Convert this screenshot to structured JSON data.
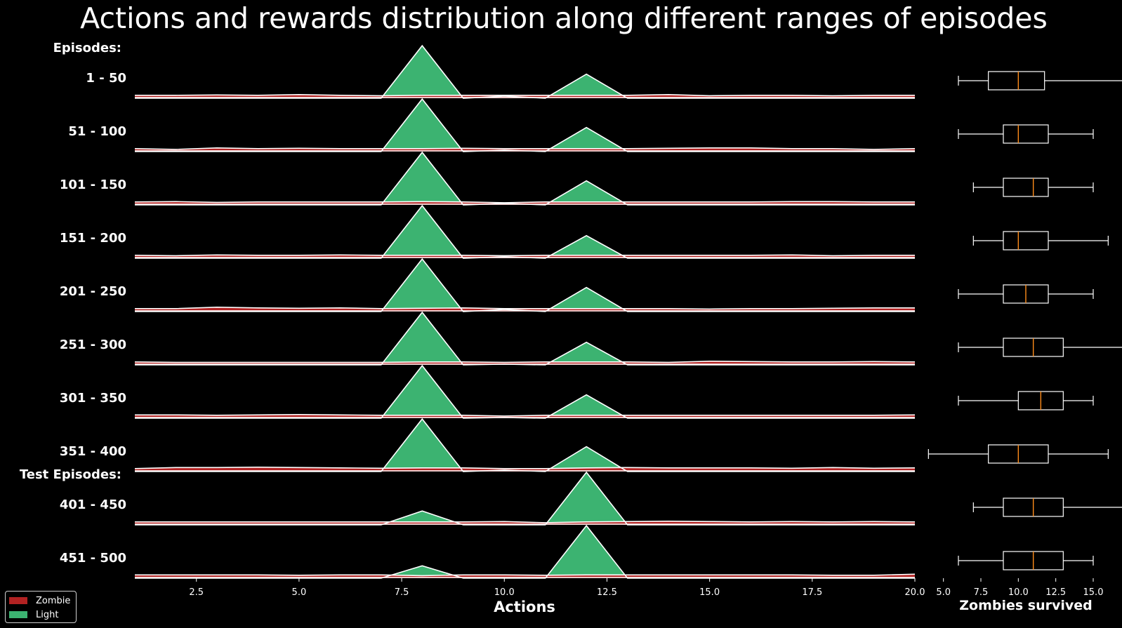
{
  "chart_data": [
    {
      "type": "area",
      "title": "Actions and rewards distribution along different ranges of episodes",
      "xlabel": "Actions",
      "ylabel": "",
      "xlim": [
        1,
        20
      ],
      "x_ticks": [
        "2.5",
        "5.0",
        "7.5",
        "10.0",
        "12.5",
        "15.0",
        "17.5",
        "20.0"
      ],
      "group_headers": [
        "Episodes:",
        "Test Episodes:"
      ],
      "legend": {
        "placement": "lower-left",
        "entries": [
          {
            "name": "Zombie",
            "color": "#b22222"
          },
          {
            "name": "Light",
            "color": "#3cb371"
          }
        ]
      },
      "x": [
        1,
        2,
        3,
        4,
        5,
        6,
        7,
        8,
        9,
        10,
        11,
        12,
        13,
        14,
        15,
        16,
        17,
        18,
        19,
        20
      ],
      "episode_ranges": [
        {
          "label": "1 - 50",
          "header": "Episodes:",
          "light": [
            0,
            0,
            0,
            0,
            0,
            0,
            0,
            0.72,
            0,
            0.03,
            0,
            0.33,
            0,
            0,
            0,
            0,
            0,
            0,
            0,
            0
          ],
          "zombie": [
            0.04,
            0.04,
            0.045,
            0.04,
            0.05,
            0.04,
            0.035,
            0.04,
            0.04,
            0.04,
            0.04,
            0.04,
            0.04,
            0.05,
            0.035,
            0.04,
            0.04,
            0.035,
            0.04,
            0.04
          ]
        },
        {
          "label": "51 - 100",
          "light": [
            0,
            0,
            0,
            0,
            0,
            0,
            0,
            0.72,
            0,
            0.02,
            0,
            0.33,
            0,
            0,
            0,
            0,
            0,
            0,
            0,
            0
          ],
          "zombie": [
            0.04,
            0.03,
            0.05,
            0.04,
            0.045,
            0.04,
            0.04,
            0.04,
            0.045,
            0.04,
            0.04,
            0.04,
            0.04,
            0.045,
            0.05,
            0.05,
            0.04,
            0.04,
            0.03,
            0.04
          ]
        },
        {
          "label": "101 - 150",
          "light": [
            0,
            0,
            0,
            0,
            0,
            0,
            0,
            0.72,
            0,
            0.02,
            0,
            0.33,
            0,
            0,
            0,
            0,
            0,
            0,
            0,
            0
          ],
          "zombie": [
            0.04,
            0.045,
            0.035,
            0.04,
            0.04,
            0.04,
            0.04,
            0.045,
            0.04,
            0.03,
            0.04,
            0.04,
            0.04,
            0.04,
            0.04,
            0.04,
            0.045,
            0.045,
            0.04,
            0.04
          ]
        },
        {
          "label": "151 - 200",
          "light": [
            0,
            0,
            0,
            0,
            0,
            0,
            0,
            0.72,
            0,
            0.02,
            0,
            0.31,
            0,
            0,
            0,
            0,
            0,
            0,
            0,
            0
          ],
          "zombie": [
            0.04,
            0.035,
            0.045,
            0.04,
            0.04,
            0.045,
            0.04,
            0.04,
            0.04,
            0.035,
            0.04,
            0.04,
            0.04,
            0.04,
            0.04,
            0.04,
            0.045,
            0.035,
            0.04,
            0.04
          ]
        },
        {
          "label": "201 - 250",
          "light": [
            0,
            0,
            0,
            0,
            0,
            0,
            0,
            0.72,
            0,
            0.03,
            0,
            0.33,
            0,
            0,
            0,
            0,
            0,
            0,
            0,
            0
          ],
          "zombie": [
            0.04,
            0.04,
            0.06,
            0.05,
            0.045,
            0.05,
            0.04,
            0.045,
            0.05,
            0.04,
            0.04,
            0.04,
            0.04,
            0.04,
            0.035,
            0.04,
            0.04,
            0.045,
            0.05,
            0.05
          ]
        },
        {
          "label": "251 - 300",
          "light": [
            0,
            0,
            0,
            0,
            0,
            0,
            0,
            0.72,
            0,
            0.01,
            0,
            0.31,
            0,
            0,
            0,
            0,
            0,
            0,
            0,
            0
          ],
          "zombie": [
            0.04,
            0.035,
            0.035,
            0.035,
            0.035,
            0.035,
            0.035,
            0.04,
            0.04,
            0.035,
            0.04,
            0.04,
            0.04,
            0.035,
            0.05,
            0.045,
            0.04,
            0.04,
            0.045,
            0.04
          ]
        },
        {
          "label": "301 - 350",
          "light": [
            0,
            0,
            0,
            0,
            0,
            0,
            0,
            0.72,
            0,
            0.01,
            0,
            0.32,
            0,
            0,
            0,
            0,
            0,
            0,
            0,
            0
          ],
          "zombie": [
            0.045,
            0.045,
            0.04,
            0.045,
            0.05,
            0.045,
            0.04,
            0.04,
            0.04,
            0.03,
            0.04,
            0.04,
            0.04,
            0.04,
            0.04,
            0.04,
            0.04,
            0.04,
            0.04,
            0.045
          ]
        },
        {
          "label": "351 - 400",
          "light": [
            0,
            0,
            0,
            0,
            0,
            0,
            0,
            0.72,
            0,
            0.02,
            0,
            0.34,
            0,
            0,
            0,
            0,
            0,
            0,
            0,
            0
          ],
          "zombie": [
            0.04,
            0.055,
            0.055,
            0.06,
            0.055,
            0.05,
            0.045,
            0.05,
            0.05,
            0.04,
            0.04,
            0.05,
            0.055,
            0.05,
            0.05,
            0.05,
            0.045,
            0.055,
            0.045,
            0.05
          ]
        },
        {
          "label": "401 - 450",
          "header": "Test Episodes:",
          "light": [
            0,
            0,
            0,
            0,
            0,
            0,
            0,
            0.19,
            0,
            0,
            0,
            0.72,
            0,
            0,
            0,
            0,
            0,
            0,
            0,
            0
          ],
          "zombie": [
            0.04,
            0.04,
            0.04,
            0.04,
            0.04,
            0.04,
            0.04,
            0.04,
            0.04,
            0.045,
            0.03,
            0.04,
            0.045,
            0.05,
            0.045,
            0.04,
            0.045,
            0.04,
            0.045,
            0.04
          ]
        },
        {
          "label": "451 - 500",
          "light": [
            0,
            0,
            0,
            0,
            0,
            0,
            0,
            0.17,
            0,
            0,
            0,
            0.72,
            0,
            0,
            0,
            0,
            0,
            0,
            0,
            0
          ],
          "zombie": [
            0.045,
            0.045,
            0.045,
            0.045,
            0.04,
            0.045,
            0.045,
            0.035,
            0.045,
            0.045,
            0.04,
            0.045,
            0.045,
            0.045,
            0.045,
            0.045,
            0.045,
            0.04,
            0.04,
            0.055
          ]
        }
      ]
    },
    {
      "type": "box",
      "xlabel": "Zombies survived",
      "xlim": [
        4.5,
        16.5
      ],
      "x_ticks": [
        "5.0",
        "7.5",
        "10.0",
        "12.5",
        "15.0"
      ],
      "boxes": [
        {
          "min": 6,
          "q1": 8,
          "median": 10,
          "q3": 11.75,
          "max": 17
        },
        {
          "min": 6,
          "q1": 9,
          "median": 10,
          "q3": 12,
          "max": 15
        },
        {
          "min": 7,
          "q1": 9,
          "median": 11,
          "q3": 12,
          "max": 15
        },
        {
          "min": 7,
          "q1": 9,
          "median": 10,
          "q3": 12,
          "max": 16
        },
        {
          "min": 6,
          "q1": 9,
          "median": 10.5,
          "q3": 12,
          "max": 15
        },
        {
          "min": 6,
          "q1": 9,
          "median": 11,
          "q3": 13,
          "max": 17
        },
        {
          "min": 6,
          "q1": 10,
          "median": 11.5,
          "q3": 13,
          "max": 15
        },
        {
          "min": 4,
          "q1": 8,
          "median": 10,
          "q3": 12,
          "max": 16
        },
        {
          "min": 7,
          "q1": 9,
          "median": 11,
          "q3": 13,
          "max": 17
        },
        {
          "min": 6,
          "q1": 9,
          "median": 11,
          "q3": 13,
          "max": 15
        }
      ]
    }
  ],
  "legend": {
    "zombie_label": "Zombie",
    "light_label": "Light",
    "zombie_color": "#b22222",
    "light_color": "#3cb371"
  }
}
